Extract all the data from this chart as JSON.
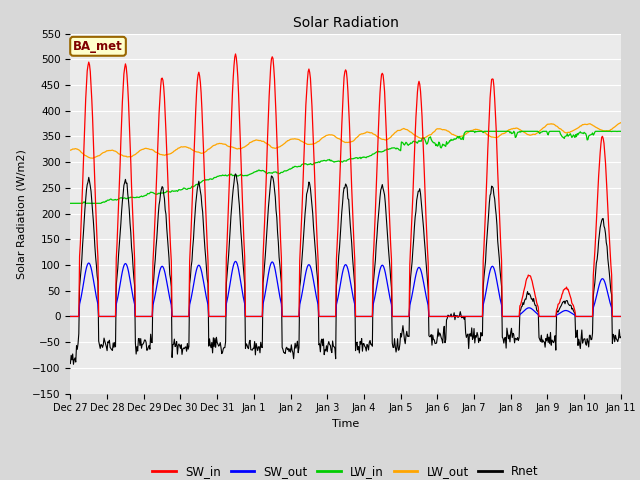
{
  "title": "Solar Radiation",
  "xlabel": "Time",
  "ylabel": "Solar Radiation (W/m2)",
  "ylim": [
    -150,
    550
  ],
  "yticks": [
    -150,
    -100,
    -50,
    0,
    50,
    100,
    150,
    200,
    250,
    300,
    350,
    400,
    450,
    500,
    550
  ],
  "x_tick_labels": [
    "Dec 27",
    "Dec 28",
    "Dec 29",
    "Dec 30",
    "Dec 31",
    "Jan 1",
    "Jan 2",
    "Jan 3",
    "Jan 4",
    "Jan 5",
    "Jan 6",
    "Jan 7",
    "Jan 8",
    "Jan 9",
    "Jan 10",
    "Jan 11"
  ],
  "legend_labels": [
    "SW_in",
    "SW_out",
    "LW_in",
    "LW_out",
    "Rnet"
  ],
  "colors": {
    "SW_in": "#ff0000",
    "SW_out": "#0000ff",
    "LW_in": "#00cc00",
    "LW_out": "#ffa500",
    "Rnet": "#000000"
  },
  "annotation_text": "BA_met",
  "annotation_text_color": "#800000",
  "annotation_bg_color": "#ffffcc",
  "annotation_edge_color": "#996600",
  "fig_bg_color": "#d8d8d8",
  "plot_bg_color": "#ebebeb"
}
